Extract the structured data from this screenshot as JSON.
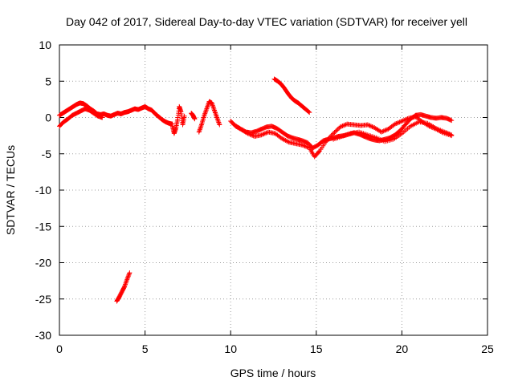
{
  "chart_data": {
    "type": "scatter",
    "title": "Day 042 of 2017, Sidereal Day-to-day VTEC variation (SDTVAR) for receiver yell",
    "xlabel": "GPS time / hours",
    "ylabel": "SDTVAR / TECUs",
    "xlim": [
      0,
      25
    ],
    "ylim": [
      -30,
      10
    ],
    "xticks": [
      0,
      5,
      10,
      15,
      20,
      25
    ],
    "yticks": [
      -30,
      -25,
      -20,
      -15,
      -10,
      -5,
      0,
      5,
      10
    ],
    "xtick_labels": [
      "0",
      "5",
      "10",
      "15",
      "20",
      "25"
    ],
    "ytick_labels": [
      "-30",
      "-25",
      "-20",
      "-15",
      "-10",
      "-5",
      "0",
      "5",
      "10"
    ],
    "grid": true,
    "marker": "+",
    "marker_color": "#ff0000",
    "series": [
      {
        "name": "SDTVAR",
        "segments": [
          {
            "x": [
              0.0,
              0.2,
              0.4,
              0.6,
              0.8,
              1.0,
              1.2,
              1.4,
              1.6,
              1.8,
              2.0,
              2.2,
              2.4,
              2.6,
              2.8,
              3.0,
              3.2,
              3.4,
              3.6,
              3.8,
              4.0,
              4.2,
              4.4,
              4.6,
              4.8,
              5.0,
              5.2,
              5.4,
              5.6,
              5.8,
              6.0,
              6.2,
              6.4,
              6.6
            ],
            "y": [
              0.3,
              0.6,
              0.9,
              1.2,
              1.5,
              1.8,
              2.0,
              1.9,
              1.6,
              1.2,
              0.9,
              0.5,
              0.4,
              0.5,
              0.3,
              0.2,
              0.4,
              0.6,
              0.5,
              0.7,
              0.8,
              1.0,
              1.2,
              1.1,
              1.3,
              1.5,
              1.2,
              1.0,
              0.5,
              0.1,
              -0.3,
              -0.6,
              -0.8,
              -0.9
            ]
          },
          {
            "x": [
              0.0,
              0.25,
              0.5,
              0.75,
              1.0,
              1.25,
              1.5,
              1.75,
              2.0,
              2.25,
              2.5
            ],
            "y": [
              -1.2,
              -0.6,
              -0.2,
              0.3,
              0.6,
              0.9,
              1.2,
              1.0,
              0.6,
              0.2,
              0.0
            ]
          },
          {
            "x": [
              3.35,
              3.5,
              3.65,
              3.8,
              3.95,
              4.1
            ],
            "y": [
              -25.3,
              -24.7,
              -24.0,
              -23.3,
              -22.3,
              -21.4
            ]
          },
          {
            "x": [
              6.6,
              6.7,
              6.8,
              6.9,
              7.0,
              7.1,
              7.2,
              7.3
            ],
            "y": [
              -1.2,
              -2.2,
              -1.5,
              -0.3,
              1.5,
              0.8,
              -1.0,
              0.2
            ]
          },
          {
            "x": [
              7.7,
              7.8,
              7.9
            ],
            "y": [
              0.6,
              0.3,
              -0.2
            ]
          },
          {
            "x": [
              8.15,
              8.3,
              8.45,
              8.6,
              8.75,
              8.9,
              9.05,
              9.2,
              9.35
            ],
            "y": [
              -2.0,
              -1.0,
              0.2,
              1.2,
              2.2,
              2.0,
              1.0,
              0.0,
              -1.0
            ]
          },
          {
            "x": [
              10.0,
              10.3,
              10.6,
              10.9,
              11.2,
              11.5,
              11.8,
              12.1,
              12.4,
              12.7,
              13.0,
              13.3,
              13.6,
              13.9,
              14.2,
              14.5,
              14.8,
              15.1,
              15.4,
              15.7,
              16.0,
              16.3,
              16.6,
              16.9,
              17.2,
              17.5,
              17.8,
              18.1,
              18.4,
              18.7,
              19.0,
              19.3,
              19.6,
              19.9,
              20.2,
              20.5,
              20.8,
              21.1,
              21.4,
              21.7,
              22.0,
              22.3,
              22.6,
              22.9
            ],
            "y": [
              -0.5,
              -1.2,
              -1.6,
              -2.0,
              -2.1,
              -1.9,
              -1.6,
              -1.3,
              -1.2,
              -1.5,
              -2.0,
              -2.5,
              -2.8,
              -3.0,
              -3.2,
              -3.5,
              -4.2,
              -3.8,
              -3.2,
              -3.0,
              -2.8,
              -2.6,
              -2.5,
              -2.3,
              -2.1,
              -2.3,
              -2.6,
              -2.9,
              -3.1,
              -3.2,
              -3.0,
              -2.8,
              -2.4,
              -1.8,
              -1.0,
              -0.2,
              0.3,
              0.4,
              0.2,
              0.0,
              -0.1,
              0.0,
              -0.1,
              -0.4
            ]
          },
          {
            "x": [
              10.2,
              10.6,
              11.0,
              11.4,
              11.8,
              12.2,
              12.6,
              13.0,
              13.4,
              13.8,
              14.2,
              14.6,
              14.9,
              15.2,
              15.6,
              16.0,
              16.4,
              16.8,
              17.2,
              17.6,
              18.0,
              18.4,
              18.8,
              19.2,
              19.6,
              20.0,
              20.4,
              20.8,
              21.2,
              21.6,
              22.0,
              22.4,
              22.9
            ],
            "y": [
              -1.0,
              -1.6,
              -2.2,
              -2.6,
              -2.4,
              -2.0,
              -2.2,
              -2.9,
              -3.4,
              -3.6,
              -3.8,
              -4.2,
              -5.4,
              -4.6,
              -3.2,
              -2.2,
              -1.3,
              -0.9,
              -1.0,
              -1.1,
              -1.0,
              -1.4,
              -2.0,
              -1.6,
              -0.9,
              -0.5,
              -0.1,
              0.1,
              -0.6,
              -1.2,
              -1.6,
              -2.1,
              -2.5
            ]
          },
          {
            "x": [
              12.55,
              12.75,
              12.95,
              13.15,
              13.35,
              13.55,
              13.75,
              13.95,
              14.15,
              14.35,
              14.6
            ],
            "y": [
              5.3,
              5.0,
              4.6,
              4.0,
              3.3,
              2.7,
              2.3,
              2.0,
              1.6,
              1.2,
              0.7
            ]
          },
          {
            "x": [
              16.0,
              16.5,
              17.0,
              17.5,
              18.0,
              18.5,
              19.0,
              19.5,
              20.0,
              20.5,
              21.0,
              21.5,
              22.0,
              22.5,
              22.9
            ],
            "y": [
              -3.0,
              -2.6,
              -2.2,
              -2.0,
              -2.4,
              -2.8,
              -3.3,
              -3.0,
              -2.2,
              -1.2,
              -0.6,
              -0.8,
              -1.5,
              -2.0,
              -2.4
            ]
          }
        ]
      }
    ]
  }
}
